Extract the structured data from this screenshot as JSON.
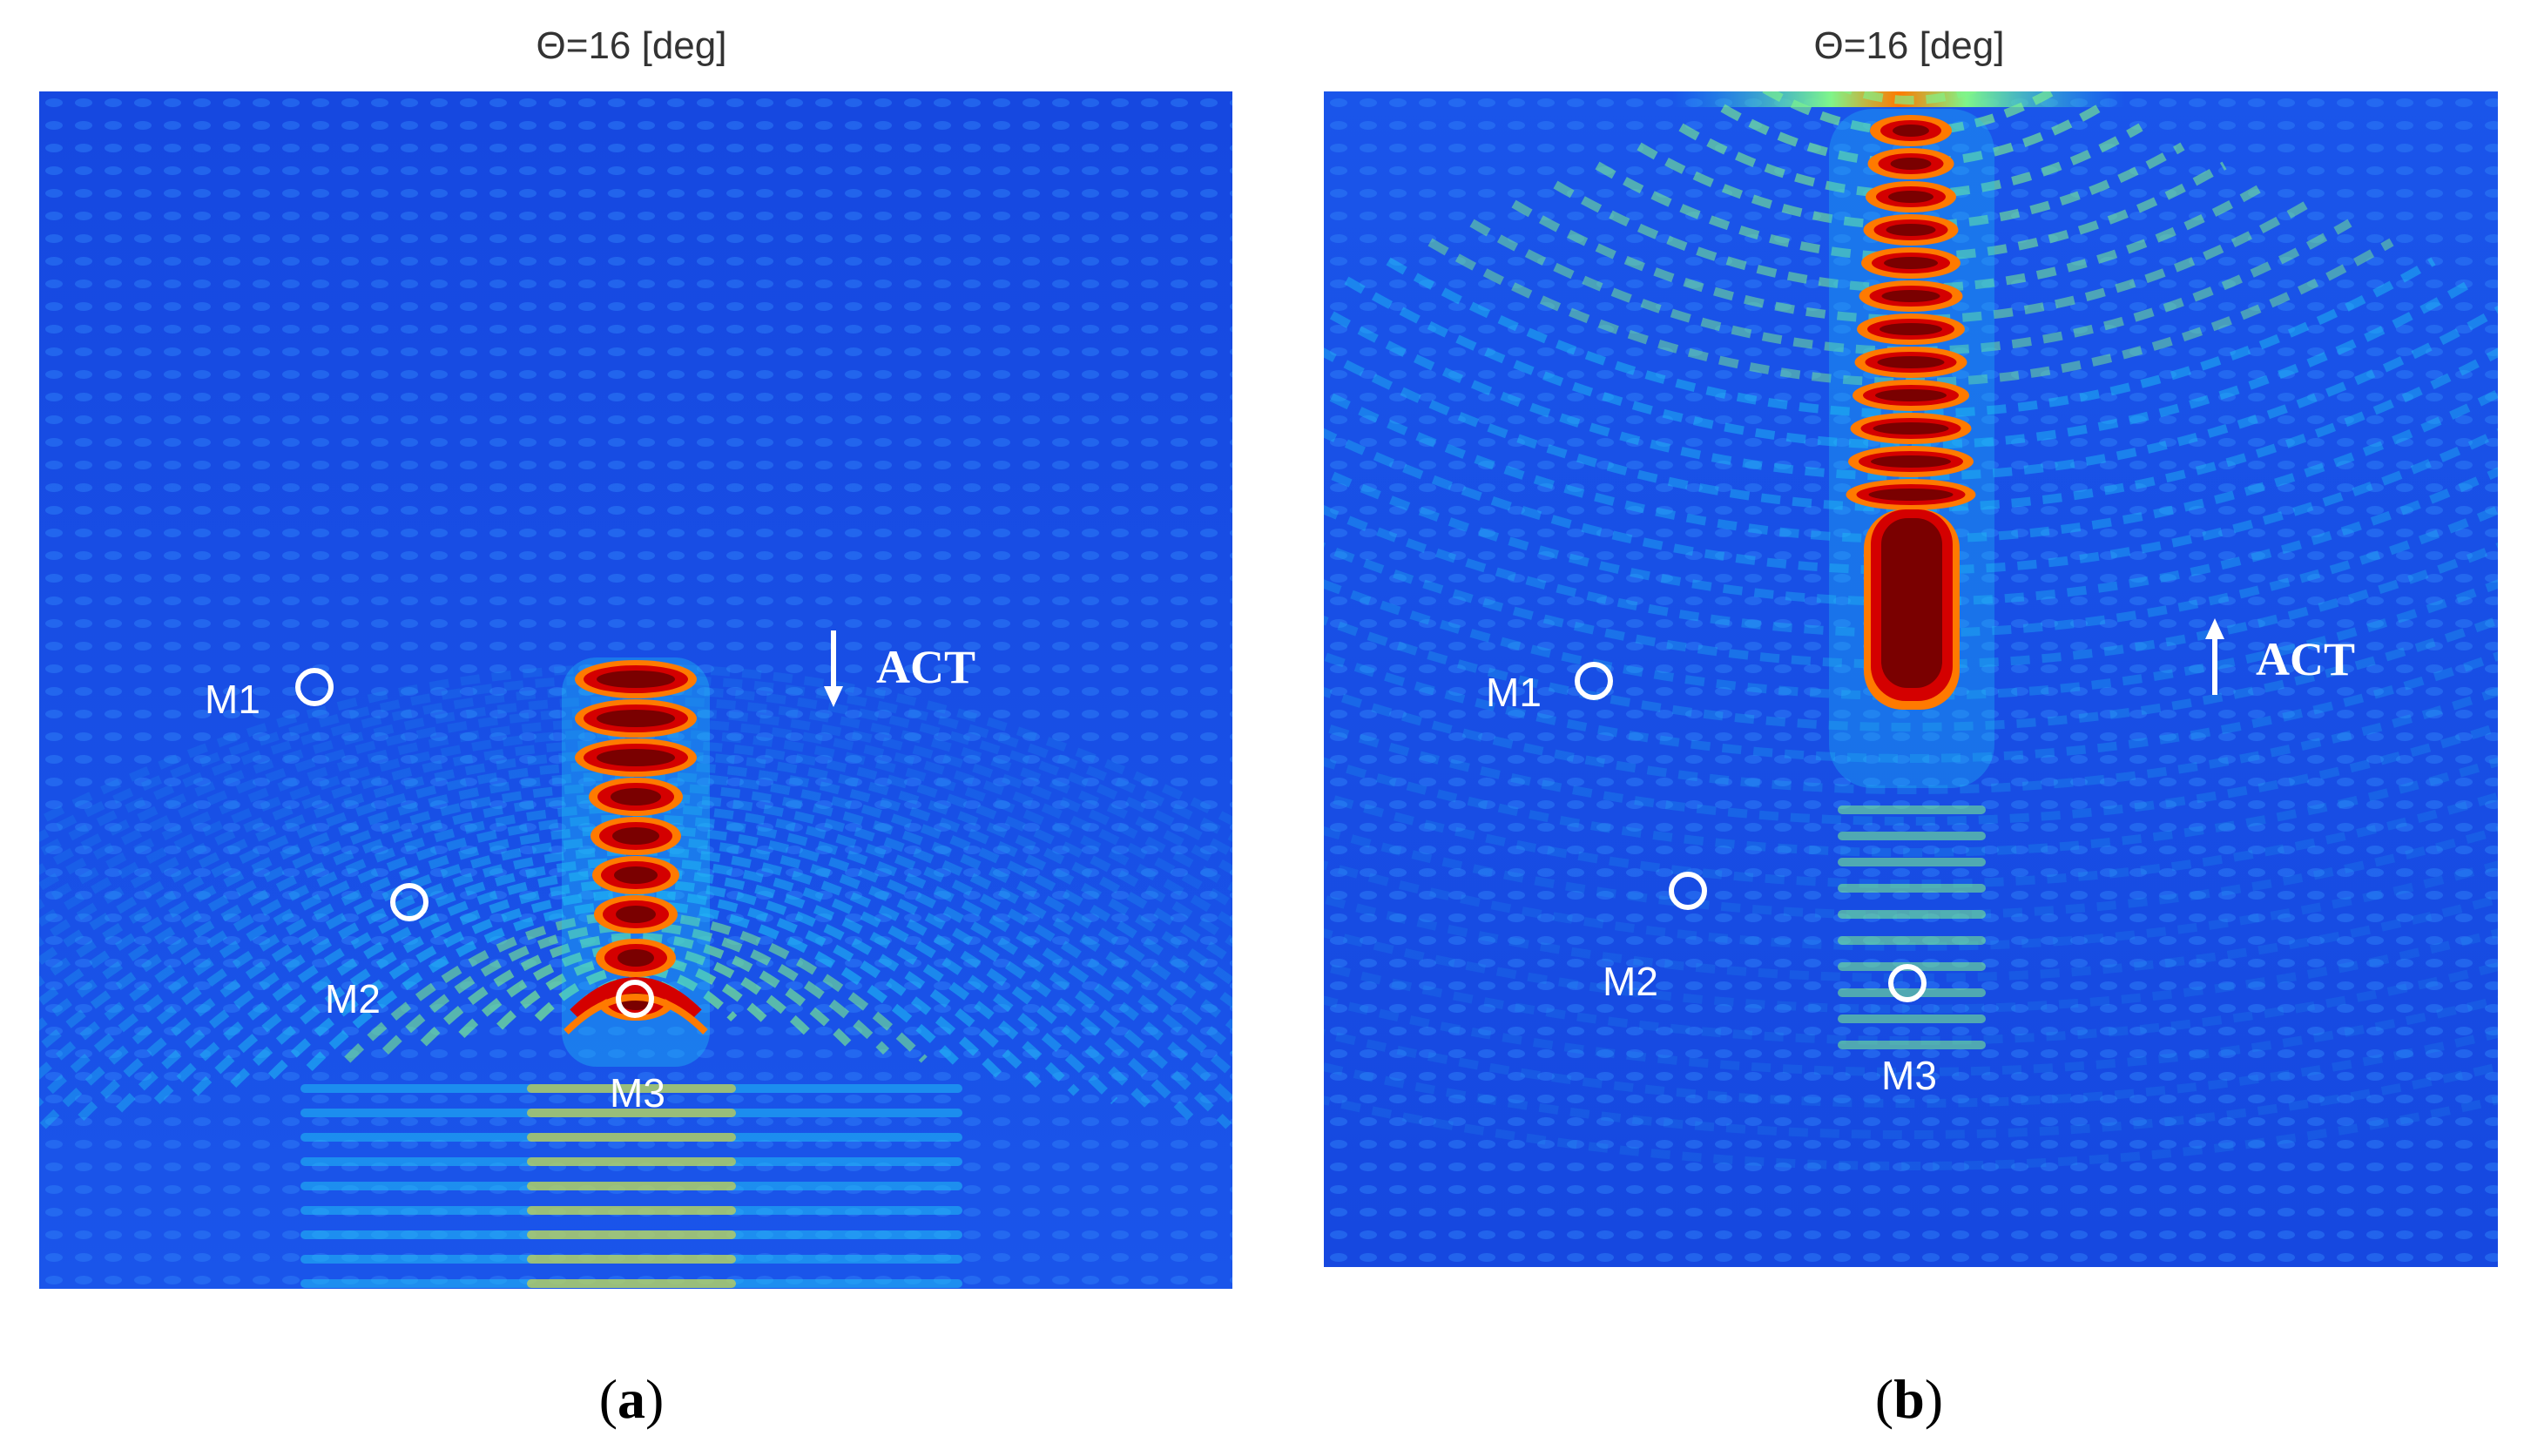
{
  "panels": [
    {
      "id": "a",
      "title": "Θ=16 [deg]",
      "caption_open": "(",
      "caption_letter": "a",
      "caption_close": ")",
      "markers": [
        "M1",
        "M2",
        "M3"
      ],
      "act_label": "ACT",
      "act_direction": "down"
    },
    {
      "id": "b",
      "title": "Θ=16 [deg]",
      "caption_open": "(",
      "caption_letter": "b",
      "caption_close": ")",
      "markers": [
        "M1",
        "M2",
        "M3"
      ],
      "act_label": "ACT",
      "act_direction": "up"
    }
  ],
  "colormap": [
    "#00007f",
    "#0a3fd6",
    "#1e6bf0",
    "#1fc8f5",
    "#7ff58a",
    "#ffe61a",
    "#ff7a00",
    "#d40000",
    "#7a0000"
  ]
}
